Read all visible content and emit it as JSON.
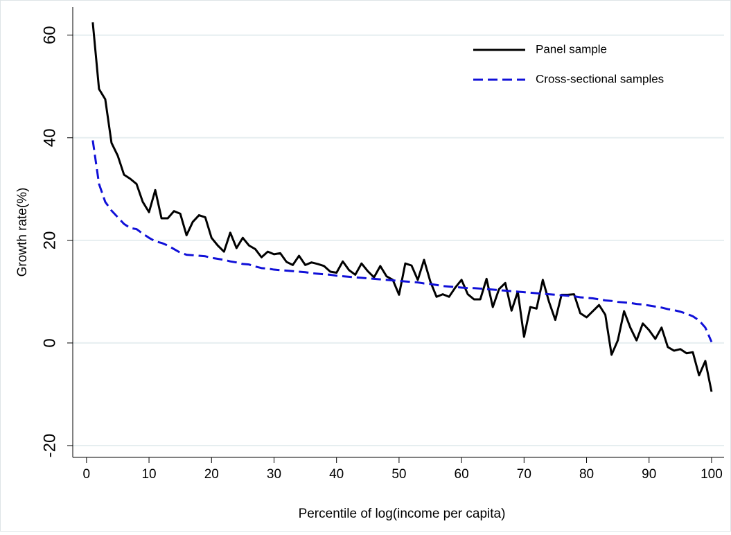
{
  "chart_data": {
    "type": "line",
    "x_label": "Percentile of log(income per capita)",
    "y_label": "Growth rate(%)",
    "x": [
      1,
      2,
      3,
      4,
      5,
      6,
      7,
      8,
      9,
      10,
      11,
      12,
      13,
      14,
      15,
      16,
      17,
      18,
      19,
      20,
      21,
      22,
      23,
      24,
      25,
      26,
      27,
      28,
      29,
      30,
      31,
      32,
      33,
      34,
      35,
      36,
      37,
      38,
      39,
      40,
      41,
      42,
      43,
      44,
      45,
      46,
      47,
      48,
      49,
      50,
      51,
      52,
      53,
      54,
      55,
      56,
      57,
      58,
      59,
      60,
      61,
      62,
      63,
      64,
      65,
      66,
      67,
      68,
      69,
      70,
      71,
      72,
      73,
      74,
      75,
      76,
      77,
      78,
      79,
      80,
      81,
      82,
      83,
      84,
      85,
      86,
      87,
      88,
      89,
      90,
      91,
      92,
      93,
      94,
      95,
      96,
      97,
      98,
      99,
      100
    ],
    "series": [
      {
        "name": "Panel sample",
        "color": "#000000",
        "dash": "solid",
        "values": [
          62.5,
          49.5,
          47.5,
          39,
          36.5,
          32.8,
          32,
          31,
          27.5,
          25.5,
          29.8,
          24.3,
          24.3,
          25.7,
          25.2,
          21,
          23.6,
          24.9,
          24.5,
          20.5,
          19,
          17.8,
          21.5,
          18.5,
          20.5,
          19,
          18.3,
          16.7,
          17.8,
          17.3,
          17.5,
          15.8,
          15.2,
          17,
          15.2,
          15.7,
          15.4,
          15,
          13.9,
          13.7,
          15.9,
          14.2,
          13.3,
          15.5,
          14,
          12.8,
          15,
          13,
          12.3,
          9.4,
          15.5,
          15.1,
          12.3,
          16.2,
          12,
          9,
          9.5,
          9,
          10.8,
          12.3,
          9.5,
          8.5,
          8.5,
          12.5,
          7,
          10.5,
          11.7,
          6.3,
          10,
          1.2,
          7,
          6.7,
          12.3,
          8,
          4.5,
          9.4,
          9.4,
          9.5,
          5.8,
          5,
          6.2,
          7.4,
          5.5,
          -2.3,
          0.5,
          6.2,
          3,
          0.5,
          3.8,
          2.5,
          0.8,
          3,
          -0.8,
          -1.5,
          -1.2,
          -2,
          -1.8,
          -6.3,
          -3.5,
          -9.5
        ]
      },
      {
        "name": "Cross-sectional samples",
        "color": "#1010d8",
        "dash": "dashed",
        "values": [
          39.5,
          31,
          27.5,
          25.8,
          24.5,
          23.2,
          22.4,
          22.2,
          21.3,
          20.5,
          19.8,
          19.5,
          19,
          18.3,
          17.6,
          17.2,
          17.1,
          17,
          16.9,
          16.6,
          16.4,
          16.2,
          15.9,
          15.7,
          15.4,
          15.3,
          14.9,
          14.6,
          14.5,
          14.3,
          14.2,
          14.1,
          14,
          13.9,
          13.8,
          13.6,
          13.5,
          13.4,
          13.3,
          13.1,
          13,
          12.9,
          12.8,
          12.7,
          12.6,
          12.5,
          12.4,
          12.3,
          12.2,
          12.1,
          12,
          11.9,
          11.8,
          11.6,
          11.5,
          11.3,
          11.1,
          11,
          10.9,
          10.8,
          10.7,
          10.7,
          10.6,
          10.5,
          10.4,
          10.3,
          10.2,
          10.1,
          10,
          9.9,
          9.8,
          9.7,
          9.6,
          9.5,
          9.4,
          9.3,
          9.2,
          9.1,
          8.9,
          8.8,
          8.7,
          8.5,
          8.3,
          8.2,
          8,
          7.9,
          7.8,
          7.6,
          7.5,
          7.3,
          7.1,
          6.9,
          6.6,
          6.4,
          6.1,
          5.7,
          5.2,
          4.4,
          3,
          0.2
        ]
      }
    ],
    "xlim": [
      -2.2,
      102
    ],
    "xticks": [
      0,
      10,
      20,
      30,
      40,
      50,
      60,
      70,
      80,
      90,
      100
    ],
    "ylim": [
      -22.3,
      65.5
    ],
    "yticks": [
      -20,
      0,
      20,
      40,
      60
    ],
    "grid": true,
    "legend": "top-right"
  }
}
